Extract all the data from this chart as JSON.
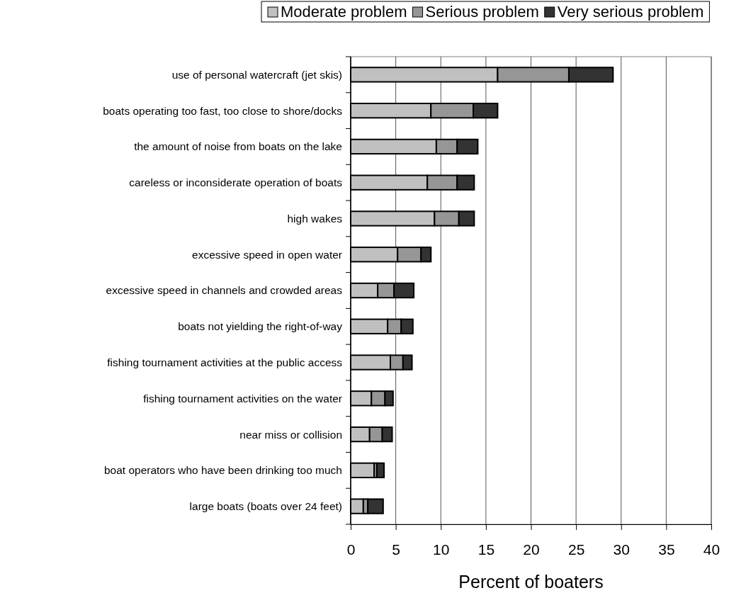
{
  "chart_data": {
    "type": "bar",
    "orientation": "horizontal",
    "stacked": true,
    "xlabel": "Percent of boaters",
    "categories": [
      "use of personal watercraft (jet skis)",
      "boats operating too fast, too close to shore/docks",
      "the amount of noise from boats on the lake",
      "careless or inconsiderate operation of boats",
      "high wakes",
      "excessive speed in open water",
      "excessive speed in channels and crowded areas",
      "boats not yielding the right-of-way",
      "fishing tournament activities at the public access",
      "fishing tournament activities on the water",
      "near miss or collision",
      "boat operators who have been drinking too much",
      "large boats (boats over 24 feet)"
    ],
    "series": [
      {
        "name": "Moderate problem",
        "color": "#c0c0c0",
        "values": [
          16.3,
          8.9,
          9.5,
          8.5,
          9.3,
          5.2,
          3.0,
          4.1,
          4.4,
          2.3,
          2.1,
          2.6,
          1.4
        ]
      },
      {
        "name": "Serious problem",
        "color": "#969696",
        "values": [
          7.9,
          4.7,
          2.3,
          3.3,
          2.7,
          2.6,
          1.8,
          1.5,
          1.4,
          1.5,
          1.4,
          0.3,
          0.5
        ]
      },
      {
        "name": "Very serious problem",
        "color": "#333333",
        "values": [
          4.9,
          2.7,
          2.3,
          1.9,
          1.7,
          1.1,
          2.2,
          1.3,
          1.0,
          0.9,
          1.1,
          0.8,
          1.7
        ]
      }
    ],
    "xlim": [
      0,
      40
    ],
    "xticks": [
      0,
      5,
      10,
      15,
      20,
      25,
      30,
      35,
      40
    ],
    "grid": "x",
    "legend": "top"
  }
}
